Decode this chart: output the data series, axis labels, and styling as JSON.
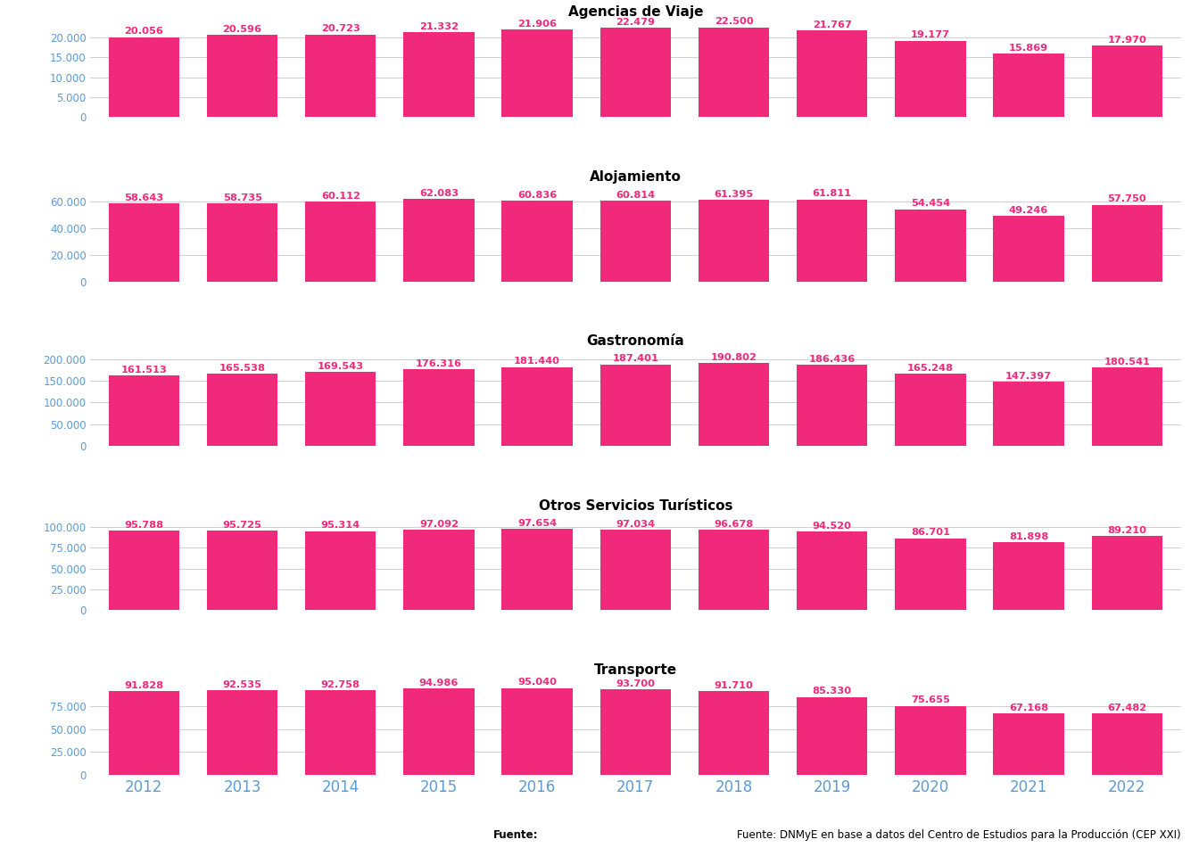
{
  "categories": [
    2012,
    2013,
    2014,
    2015,
    2016,
    2017,
    2018,
    2019,
    2020,
    2021,
    2022
  ],
  "subplots": [
    {
      "title": "Agencias de Viaje",
      "values": [
        20056,
        20596,
        20723,
        21332,
        21906,
        22479,
        22500,
        21767,
        19177,
        15869,
        17970
      ],
      "ylim": [
        0,
        24000
      ],
      "yticks": [
        0,
        5000,
        10000,
        15000,
        20000
      ],
      "labels": [
        "20.056",
        "20.596",
        "20.723",
        "21.332",
        "21.906",
        "22.479",
        "22.500",
        "21.767",
        "19.177",
        "15.869",
        "17.970"
      ]
    },
    {
      "title": "Alojamiento",
      "values": [
        58643,
        58735,
        60112,
        62083,
        60836,
        60814,
        61395,
        61811,
        54454,
        49246,
        57750
      ],
      "ylim": [
        0,
        72000
      ],
      "yticks": [
        0,
        20000,
        40000,
        60000
      ],
      "labels": [
        "58.643",
        "58.735",
        "60.112",
        "62.083",
        "60.836",
        "60.814",
        "61.395",
        "61.811",
        "54.454",
        "49.246",
        "57.750"
      ]
    },
    {
      "title": "Gastronomía",
      "values": [
        161513,
        165538,
        169543,
        176316,
        181440,
        187401,
        190802,
        186436,
        165248,
        147397,
        180541
      ],
      "ylim": [
        0,
        220000
      ],
      "yticks": [
        0,
        50000,
        100000,
        150000,
        200000
      ],
      "labels": [
        "161.513",
        "165.538",
        "169.543",
        "176.316",
        "181.440",
        "187.401",
        "190.802",
        "186.436",
        "165.248",
        "147.397",
        "180.541"
      ]
    },
    {
      "title": "Otros Servicios Turísticos",
      "values": [
        95788,
        95725,
        95314,
        97092,
        97654,
        97034,
        96678,
        94520,
        86701,
        81898,
        89210
      ],
      "ylim": [
        0,
        115000
      ],
      "yticks": [
        0,
        25000,
        50000,
        75000,
        100000
      ],
      "labels": [
        "95.788",
        "95.725",
        "95.314",
        "97.092",
        "97.654",
        "97.034",
        "96.678",
        "94.520",
        "86.701",
        "81.898",
        "89.210"
      ]
    },
    {
      "title": "Transporte",
      "values": [
        91828,
        92535,
        92758,
        94986,
        95040,
        93700,
        91710,
        85330,
        75655,
        67168,
        67482
      ],
      "ylim": [
        0,
        105000
      ],
      "yticks": [
        0,
        25000,
        50000,
        75000
      ],
      "labels": [
        "91.828",
        "92.535",
        "92.758",
        "94.986",
        "95.040",
        "93.700",
        "91.710",
        "85.330",
        "75.655",
        "67.168",
        "67.482"
      ]
    }
  ],
  "bar_color": "#F0297A",
  "label_color": "#F0297A",
  "tick_color": "#5B9BD5",
  "background_color": "#FFFFFF",
  "grid_color": "#D0D0D0",
  "title_fontsize": 11,
  "label_fontsize": 8.2,
  "tick_fontsize": 8.5,
  "xtick_fontsize": 12,
  "source_bold": "Fuente:",
  "source_rest": " DNMyE en base a datos del Centro de Estudios para la Producción (CEP XXI)"
}
